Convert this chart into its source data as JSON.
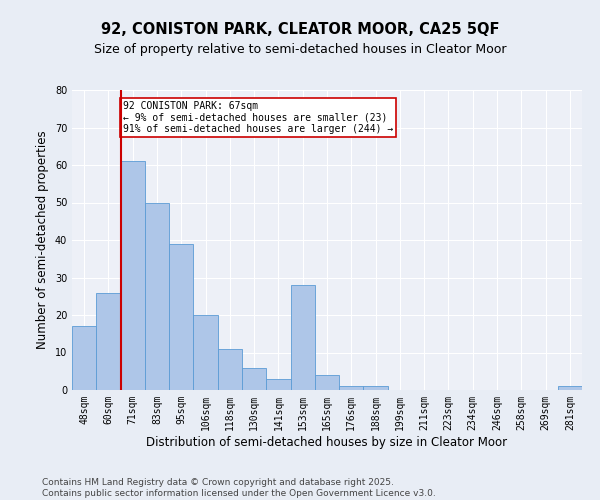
{
  "title1": "92, CONISTON PARK, CLEATOR MOOR, CA25 5QF",
  "title2": "Size of property relative to semi-detached houses in Cleator Moor",
  "xlabel": "Distribution of semi-detached houses by size in Cleator Moor",
  "ylabel": "Number of semi-detached properties",
  "categories": [
    "48sqm",
    "60sqm",
    "71sqm",
    "83sqm",
    "95sqm",
    "106sqm",
    "118sqm",
    "130sqm",
    "141sqm",
    "153sqm",
    "165sqm",
    "176sqm",
    "188sqm",
    "199sqm",
    "211sqm",
    "223sqm",
    "234sqm",
    "246sqm",
    "258sqm",
    "269sqm",
    "281sqm"
  ],
  "values": [
    17,
    26,
    61,
    50,
    39,
    20,
    11,
    6,
    3,
    28,
    4,
    1,
    1,
    0,
    0,
    0,
    0,
    0,
    0,
    0,
    1
  ],
  "bar_color": "#aec6e8",
  "bar_edge_color": "#5b9bd5",
  "vline_color": "#cc0000",
  "annotation_text": "92 CONISTON PARK: 67sqm\n← 9% of semi-detached houses are smaller (23)\n91% of semi-detached houses are larger (244) →",
  "annotation_box_color": "#ffffff",
  "annotation_edge_color": "#cc0000",
  "ylim": [
    0,
    80
  ],
  "yticks": [
    0,
    10,
    20,
    30,
    40,
    50,
    60,
    70,
    80
  ],
  "footnote": "Contains HM Land Registry data © Crown copyright and database right 2025.\nContains public sector information licensed under the Open Government Licence v3.0.",
  "background_color": "#e8edf5",
  "plot_background_color": "#edf0f7",
  "grid_color": "#ffffff",
  "title_fontsize": 10.5,
  "subtitle_fontsize": 9,
  "tick_fontsize": 7,
  "footnote_fontsize": 6.5,
  "ylabel_fontsize": 8.5,
  "xlabel_fontsize": 8.5
}
